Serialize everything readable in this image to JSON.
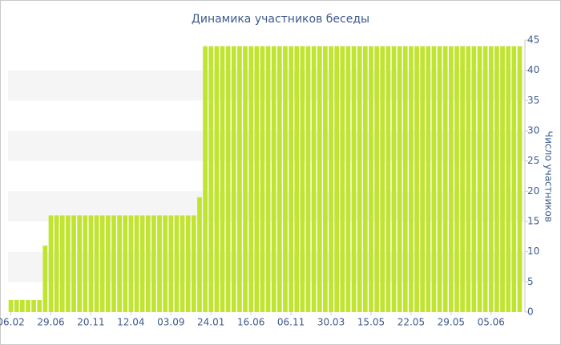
{
  "chart_data": {
    "type": "bar",
    "title": "Динамика участников беседы",
    "y_axis_label": "Число участников",
    "categories": [
      "06.02",
      null,
      null,
      null,
      null,
      null,
      null,
      "29.06",
      null,
      null,
      null,
      null,
      null,
      null,
      "20.11",
      null,
      null,
      null,
      null,
      null,
      null,
      "12.04",
      null,
      null,
      null,
      null,
      null,
      null,
      "03.09",
      null,
      null,
      null,
      null,
      null,
      null,
      "24.01",
      null,
      null,
      null,
      null,
      null,
      null,
      "16.06",
      null,
      null,
      null,
      null,
      null,
      null,
      "06.11",
      null,
      null,
      null,
      null,
      null,
      null,
      "30.03",
      null,
      null,
      null,
      null,
      null,
      null,
      "15.05",
      null,
      null,
      null,
      null,
      null,
      null,
      "22.05",
      null,
      null,
      null,
      null,
      null,
      null,
      "29.05",
      null,
      null,
      null,
      null,
      null,
      null,
      "05.06",
      null,
      null,
      null,
      null,
      null
    ],
    "values": [
      2,
      2,
      2,
      2,
      2,
      2,
      11,
      16,
      16,
      16,
      16,
      16,
      16,
      16,
      16,
      16,
      16,
      16,
      16,
      16,
      16,
      16,
      16,
      16,
      16,
      16,
      16,
      16,
      16,
      16,
      16,
      16,
      16,
      19,
      44,
      44,
      44,
      44,
      44,
      44,
      44,
      44,
      44,
      44,
      44,
      44,
      44,
      44,
      44,
      44,
      44,
      44,
      44,
      44,
      44,
      44,
      44,
      44,
      44,
      44,
      44,
      44,
      44,
      44,
      44,
      44,
      44,
      44,
      44,
      44,
      44,
      44,
      44,
      44,
      44,
      44,
      44,
      44,
      44,
      44,
      44,
      44,
      44,
      44,
      44,
      44,
      44,
      44,
      44,
      44
    ],
    "color": "#c0e430",
    "ylim": [
      0,
      45
    ],
    "yticks": [
      0,
      5,
      10,
      15,
      20,
      25,
      30,
      35,
      40,
      45
    ],
    "grid": true
  }
}
